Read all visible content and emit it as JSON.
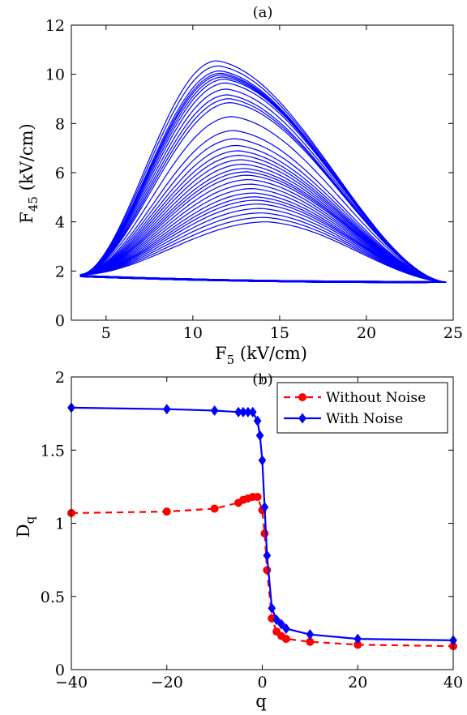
{
  "chart_data": [
    {
      "type": "line",
      "title": "(a)",
      "xlabel": {
        "base": "F",
        "sub": "5",
        "rest": " (kV/cm)"
      },
      "ylabel": {
        "base": "F",
        "sub": "45",
        "rest": " (kV/cm)"
      },
      "xlim": [
        3,
        25
      ],
      "ylim": [
        0,
        12
      ],
      "xticks": [
        5,
        10,
        15,
        20,
        25
      ],
      "yticks": [
        0,
        2,
        4,
        6,
        8,
        10,
        12
      ],
      "grid": false,
      "color": "#0000ff",
      "start_point": [
        3.5,
        1.85
      ],
      "end_point": [
        24.6,
        1.55
      ],
      "peak_x": [
        11.4,
        11.6,
        11.7,
        11.9,
        12.0,
        12.2,
        12.4,
        12.6,
        12.8,
        13.0,
        13.2,
        13.4,
        13.6,
        13.8,
        14.0,
        14.3
      ],
      "peak_y": [
        10.55,
        10.1,
        9.95,
        9.75,
        9.2,
        8.85,
        7.6,
        7.0,
        6.6,
        6.2,
        5.9,
        5.5,
        5.1,
        4.8,
        4.4,
        4.0
      ],
      "loop_count": 34
    },
    {
      "type": "line",
      "title": "(b)",
      "xlabel": "q",
      "ylabel": {
        "base": "D",
        "sub": "q",
        "rest": ""
      },
      "xlim": [
        -40,
        40
      ],
      "ylim": [
        0,
        2
      ],
      "xticks": [
        -40,
        -20,
        0,
        20,
        40
      ],
      "yticks": [
        0,
        0.5,
        1,
        1.5,
        2
      ],
      "ytick_labels": [
        "0",
        "0.5",
        "1",
        "1.5",
        "2"
      ],
      "xtick_labels": [
        "−40",
        "−20",
        "0",
        "20",
        "40"
      ],
      "grid": false,
      "legend": "top-right",
      "series": [
        {
          "name": "Without Noise",
          "color": "#ff0000",
          "line": "dashed",
          "marker": "circle",
          "x": [
            -40,
            -20,
            -10,
            -5,
            -4,
            -3,
            -2,
            -1,
            0,
            0.5,
            1,
            2,
            3,
            4,
            5,
            10,
            20,
            40
          ],
          "y": [
            1.07,
            1.08,
            1.1,
            1.14,
            1.16,
            1.17,
            1.18,
            1.18,
            1.09,
            0.93,
            0.68,
            0.35,
            0.26,
            0.23,
            0.21,
            0.19,
            0.17,
            0.16
          ]
        },
        {
          "name": "With Noise",
          "color": "#0000ff",
          "line": "solid",
          "marker": "diamond",
          "x": [
            -40,
            -20,
            -10,
            -5,
            -4,
            -3,
            -2,
            -1,
            -0.5,
            0,
            0.5,
            1,
            2,
            3,
            4,
            5,
            10,
            20,
            40
          ],
          "y": [
            1.79,
            1.78,
            1.77,
            1.76,
            1.76,
            1.76,
            1.76,
            1.7,
            1.6,
            1.43,
            1.11,
            0.78,
            0.42,
            0.34,
            0.31,
            0.28,
            0.24,
            0.21,
            0.2
          ]
        }
      ]
    }
  ]
}
